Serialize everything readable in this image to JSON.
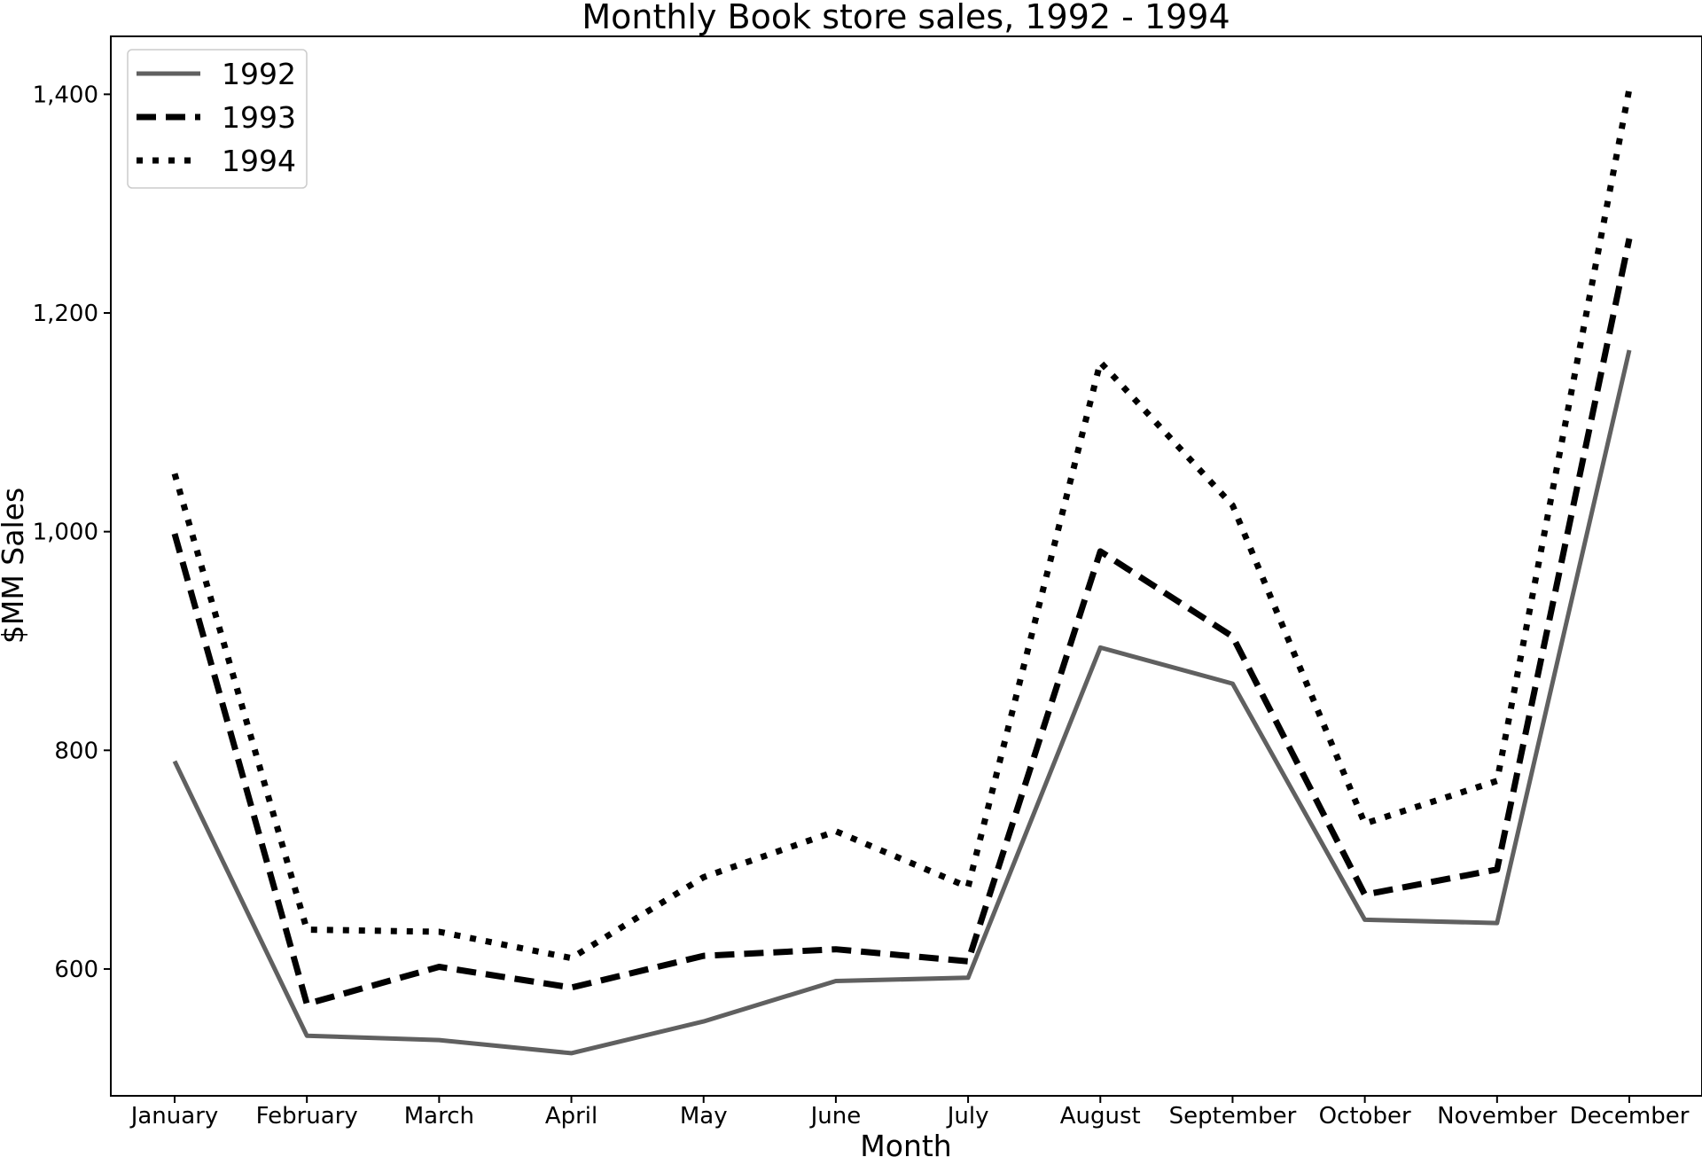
{
  "chart_data": {
    "type": "line",
    "title": "Monthly Book store sales, 1992 - 1994",
    "xlabel": "Month",
    "ylabel": "$MM Sales",
    "categories": [
      "January",
      "February",
      "March",
      "April",
      "May",
      "June",
      "July",
      "August",
      "September",
      "October",
      "November",
      "December"
    ],
    "ylim": [
      484,
      1453
    ],
    "yticks": [
      600,
      800,
      1000,
      1200,
      1400
    ],
    "ytick_labels": [
      "600",
      "800",
      "1,000",
      "1,200",
      "1,400"
    ],
    "grid": false,
    "legend_position": "top-left",
    "series": [
      {
        "name": "1992",
        "style": "solid",
        "color": "#606060",
        "values": [
          790,
          539,
          535,
          523,
          552,
          589,
          592,
          894,
          861,
          645,
          642,
          1166
        ]
      },
      {
        "name": "1993",
        "style": "dashed",
        "color": "#000000",
        "values": [
          998,
          568,
          602,
          583,
          612,
          618,
          607,
          982,
          904,
          668,
          691,
          1268
        ]
      },
      {
        "name": "1994",
        "style": "dotted",
        "color": "#000000",
        "values": [
          1053,
          636,
          634,
          610,
          684,
          726,
          675,
          1155,
          1024,
          733,
          772,
          1405
        ]
      }
    ]
  }
}
